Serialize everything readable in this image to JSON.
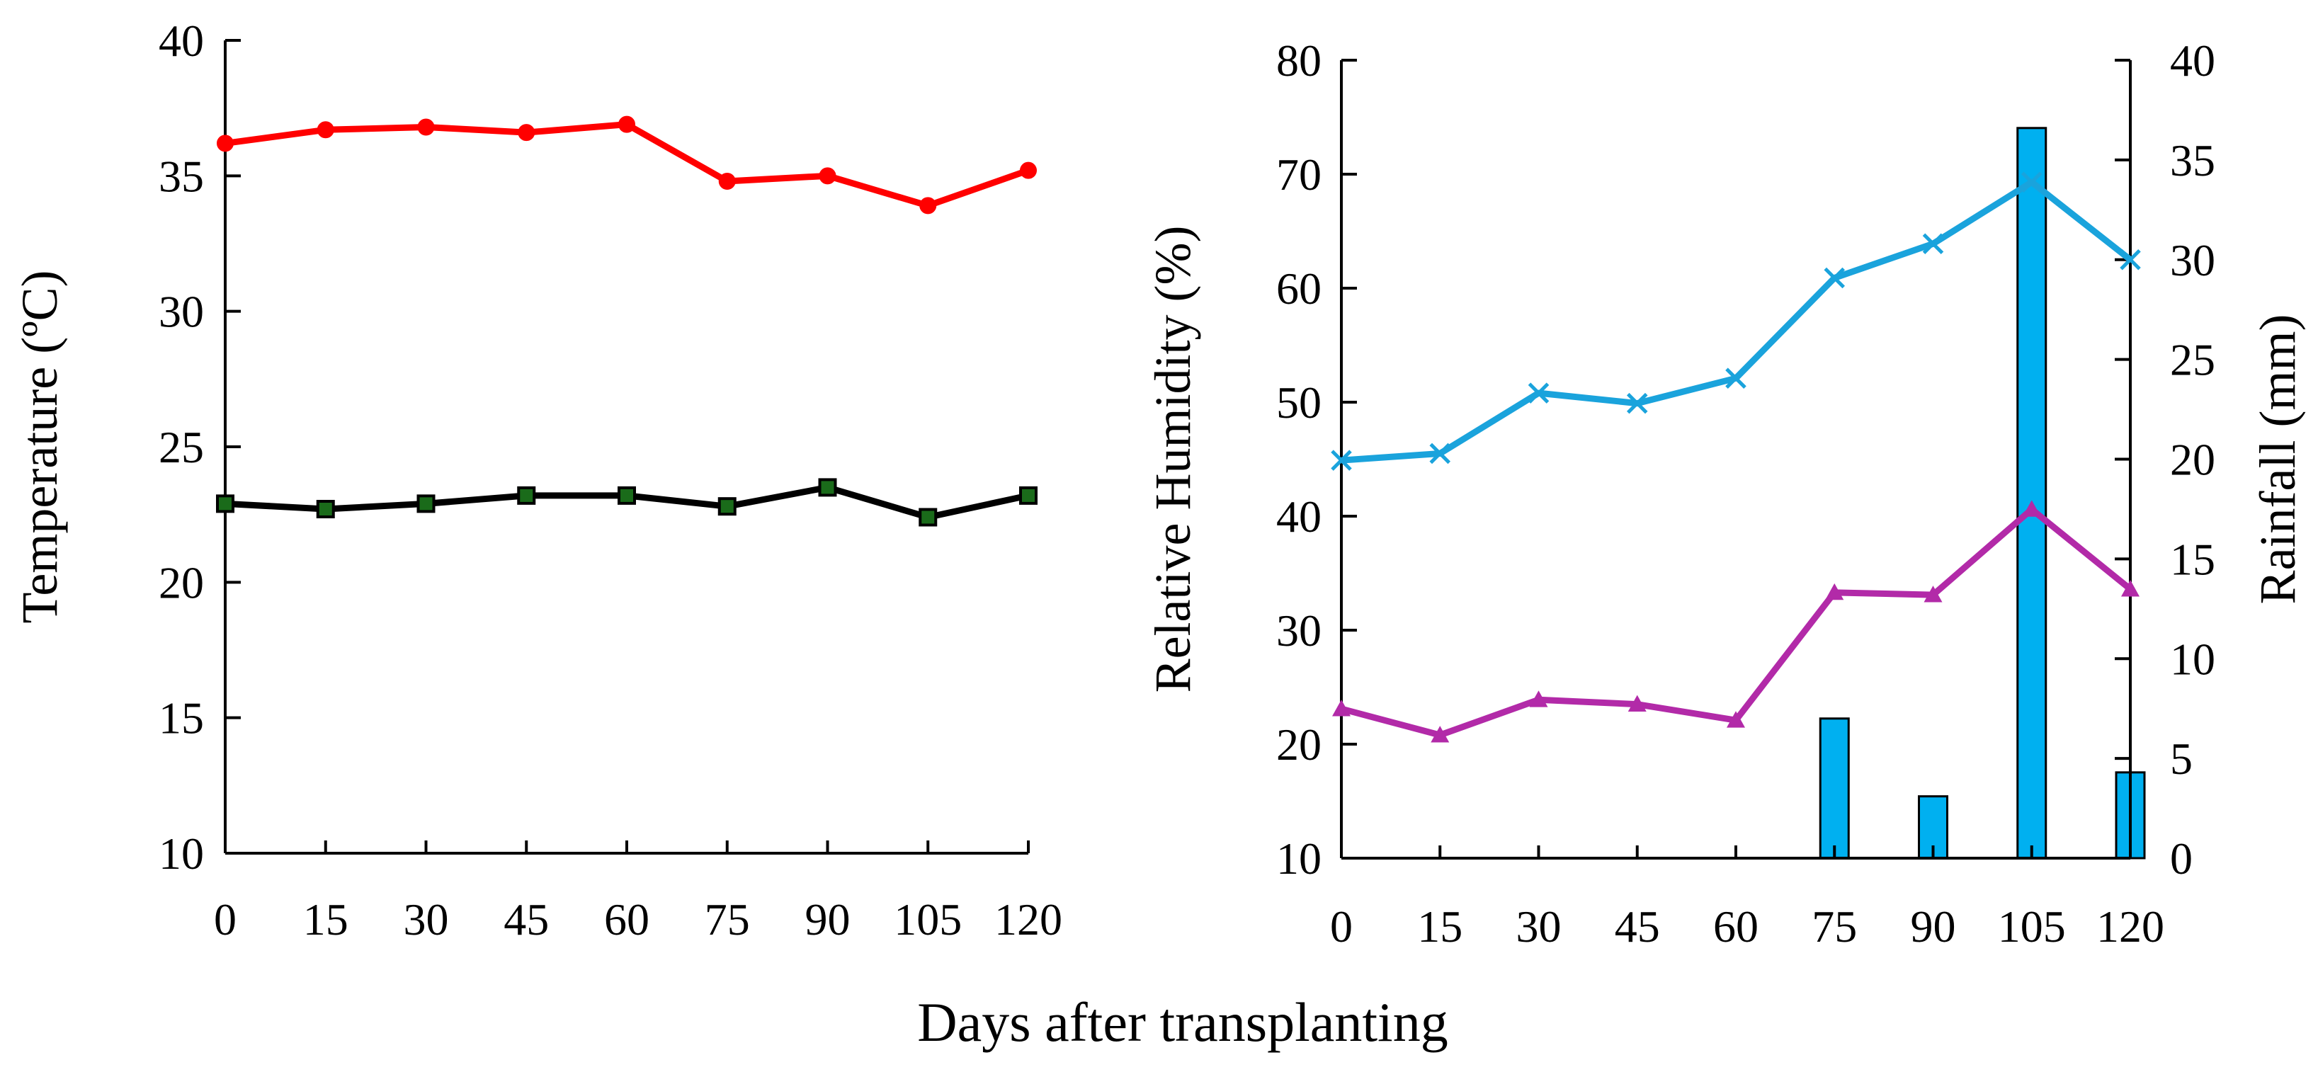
{
  "chart_data": [
    {
      "type": "line",
      "title": "",
      "xlabel": "",
      "ylabel": "Temperature (ºC)",
      "x": [
        0,
        15,
        30,
        45,
        60,
        75,
        90,
        105,
        120
      ],
      "xticks": [
        "0",
        "15",
        "30",
        "45",
        "60",
        "75",
        "90",
        "105",
        "120"
      ],
      "ylim": [
        10,
        40
      ],
      "yticks": [
        "10",
        "15",
        "20",
        "25",
        "30",
        "35",
        "40"
      ],
      "grid": false,
      "series": [
        {
          "values": [
            36.2,
            36.7,
            36.8,
            36.6,
            36.9,
            34.8,
            35.0,
            33.9,
            35.2
          ],
          "color": "#ff0000",
          "marker": "circle"
        },
        {
          "values": [
            22.9,
            22.7,
            22.9,
            23.2,
            23.2,
            22.8,
            23.5,
            22.4,
            23.2
          ],
          "color": "#000000",
          "marker": "square",
          "marker_fill": "#1a6b1a"
        }
      ]
    },
    {
      "type": "line+bar",
      "title": "",
      "xlabel": "",
      "ylabel": "Relative Humidity (%)",
      "ylabel_right": "Rainfall (mm)",
      "x": [
        0,
        15,
        30,
        45,
        60,
        75,
        90,
        105,
        120
      ],
      "xticks": [
        "0",
        "15",
        "30",
        "45",
        "60",
        "75",
        "90",
        "105",
        "120"
      ],
      "ylim": [
        10,
        80
      ],
      "yticks": [
        "10",
        "20",
        "30",
        "40",
        "50",
        "60",
        "70",
        "80"
      ],
      "ylim_right": [
        0,
        40
      ],
      "yticks_right": [
        "0",
        "5",
        "10",
        "15",
        "20",
        "25",
        "30",
        "35",
        "40"
      ],
      "grid": false,
      "series": [
        {
          "values": [
            44.9,
            45.5,
            50.8,
            49.9,
            52.1,
            60.9,
            63.9,
            69.3,
            62.5
          ],
          "color": "#1aa3dc",
          "marker": "x"
        },
        {
          "values": [
            23.1,
            20.8,
            23.9,
            23.5,
            22.1,
            33.3,
            33.1,
            40.6,
            33.6
          ],
          "color": "#b22aa8",
          "marker": "triangle"
        }
      ],
      "bars": {
        "axis": "right",
        "values": [
          0,
          0,
          0,
          0,
          0,
          7.0,
          3.1,
          36.6,
          4.3
        ],
        "color": "#00b0f0"
      }
    }
  ],
  "shared_xlabel": "Days after transplanting"
}
